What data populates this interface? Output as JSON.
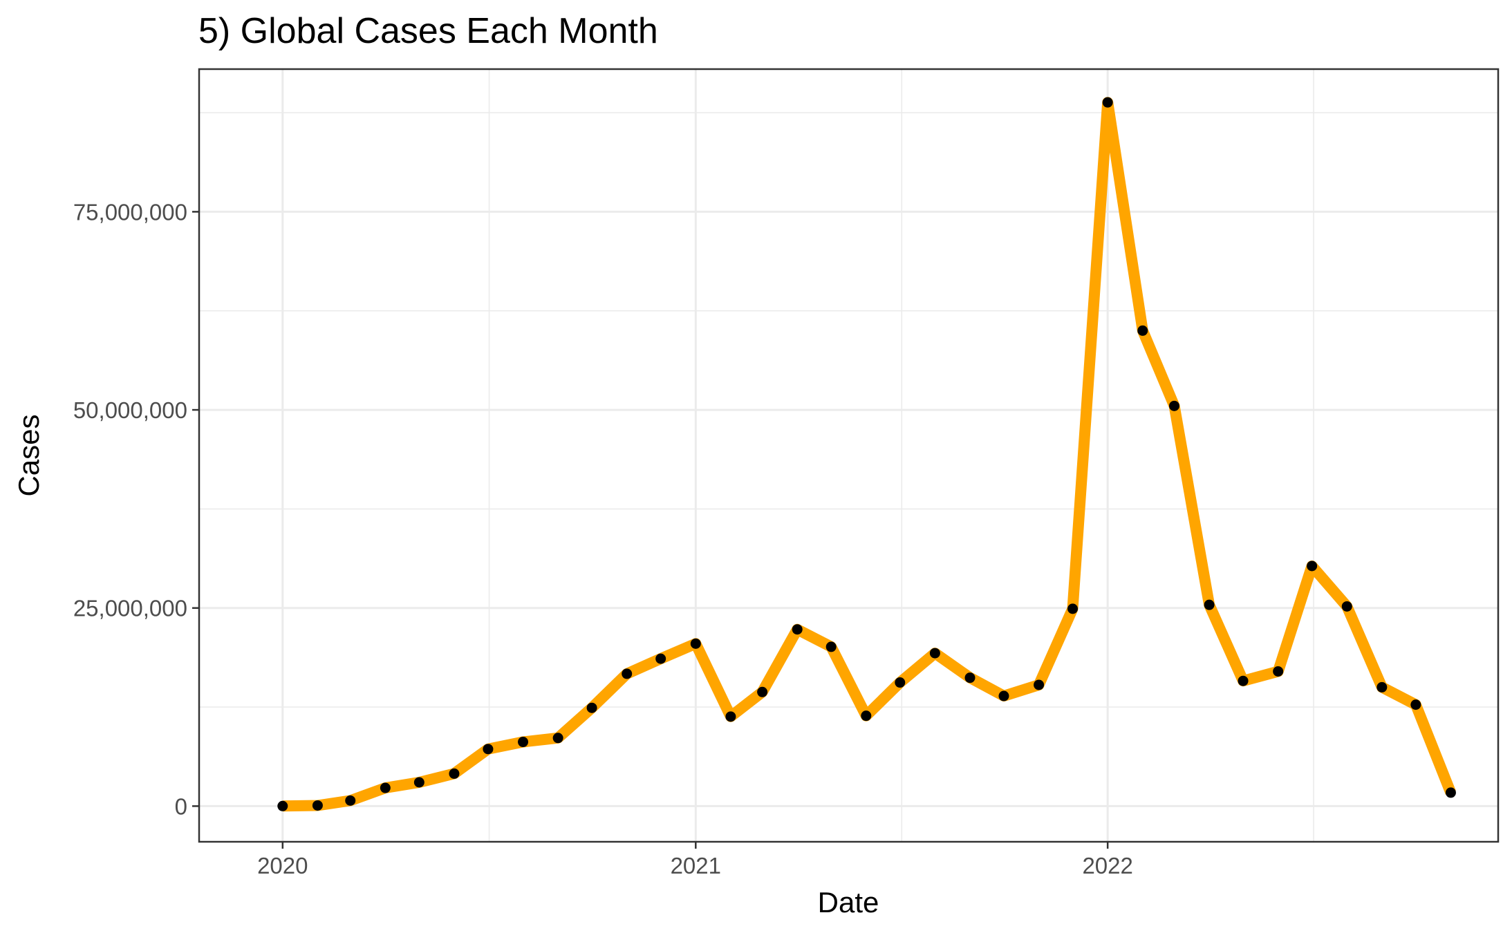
{
  "chart_data": {
    "type": "line",
    "title": "5) Global Cases Each Month",
    "xlabel": "Date",
    "ylabel": "Cases",
    "x_ticks": [
      "2020",
      "2021",
      "2022"
    ],
    "y_ticks": [
      "0",
      "25,000,000",
      "50,000,000",
      "75,000,000"
    ],
    "ylim": [
      -4500000,
      93000000
    ],
    "xlim": [
      "2019-10-19",
      "2022-12-13"
    ],
    "grid": true,
    "line_color": "#FFA500",
    "point_color": "#000000",
    "series": [
      {
        "x": [
          "2020-01-01",
          "2020-02-01",
          "2020-03-01",
          "2020-04-01",
          "2020-05-01",
          "2020-06-01",
          "2020-07-01",
          "2020-08-01",
          "2020-09-01",
          "2020-10-01",
          "2020-11-01",
          "2020-12-01",
          "2021-01-01",
          "2021-02-01",
          "2021-03-01",
          "2021-04-01",
          "2021-05-01",
          "2021-06-01",
          "2021-07-01",
          "2021-08-01",
          "2021-09-01",
          "2021-10-01",
          "2021-11-01",
          "2021-12-01",
          "2022-01-01",
          "2022-02-01",
          "2022-03-01",
          "2022-04-01",
          "2022-05-01",
          "2022-06-01",
          "2022-07-01",
          "2022-08-01",
          "2022-09-01",
          "2022-10-01",
          "2022-11-01"
        ],
        "values": [
          10000,
          80000,
          700000,
          2300000,
          3000000,
          4100000,
          7200000,
          8100000,
          8600000,
          12400000,
          16700000,
          18600000,
          20500000,
          11300000,
          14400000,
          22300000,
          20100000,
          11400000,
          15600000,
          19300000,
          16200000,
          13900000,
          15300000,
          24900000,
          88800000,
          60000000,
          50500000,
          25400000,
          15800000,
          17000000,
          30300000,
          25200000,
          15000000,
          12800000,
          1700000
        ]
      }
    ]
  }
}
